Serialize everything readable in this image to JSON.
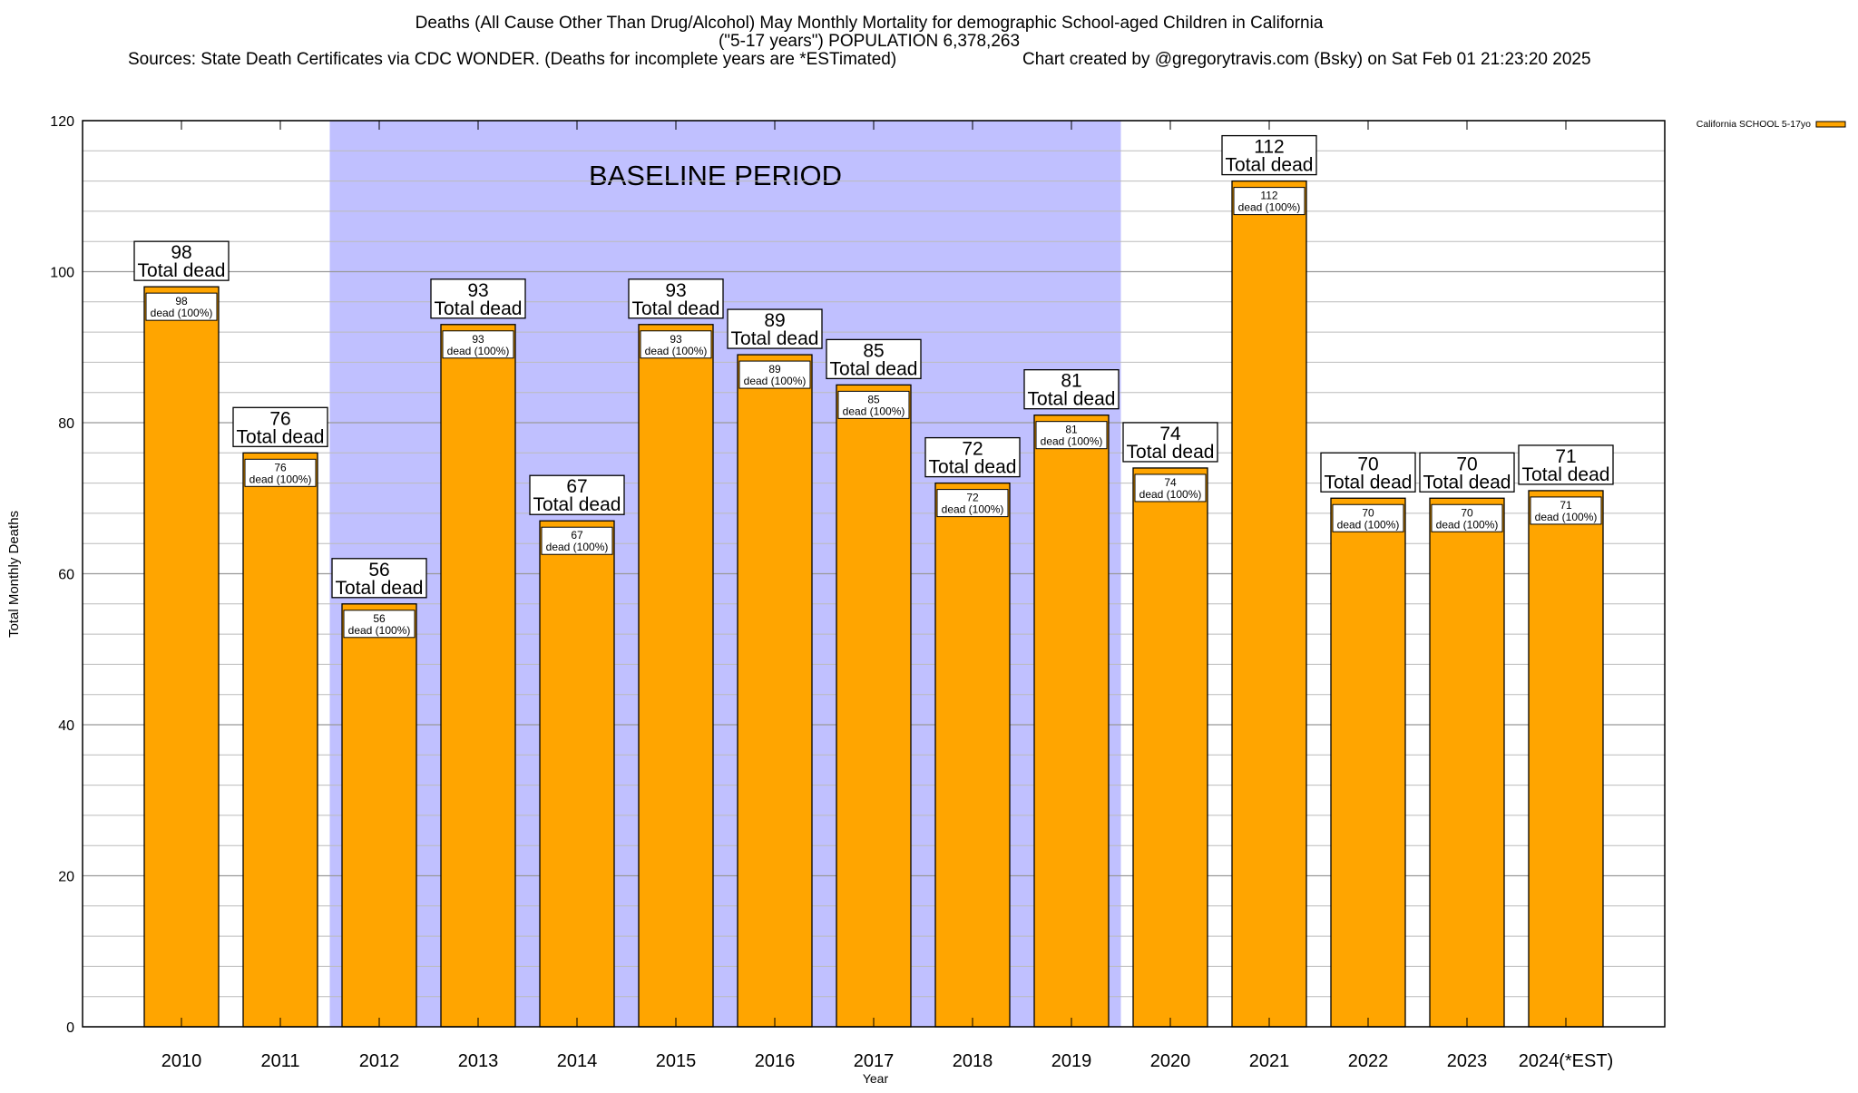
{
  "chart_data": {
    "type": "bar",
    "title_lines": [
      "Deaths (All Cause Other Than Drug/Alcohol) May Monthly Mortality for demographic School-aged Children in California",
      "(\"5-17 years\") POPULATION 6,378,263"
    ],
    "source_note": "Sources: State Death Certificates via CDC WONDER. (Deaths for incomplete years are *ESTimated)",
    "credit_note": "Chart created by @gregorytravis.com (Bsky) on Sat Feb 01 21:23:20 2025",
    "xlabel": "Year",
    "ylabel": "Total Monthly Deaths",
    "ylim": [
      0,
      120
    ],
    "yticks": [
      0,
      20,
      40,
      60,
      80,
      100,
      120
    ],
    "grid": true,
    "categories": [
      "2010",
      "2011",
      "2012",
      "2013",
      "2014",
      "2015",
      "2016",
      "2017",
      "2018",
      "2019",
      "2020",
      "2021",
      "2022",
      "2023",
      "2024(*EST)"
    ],
    "series": [
      {
        "name": "California SCHOOL 5-17yo",
        "color": "#ffa500",
        "values": [
          98,
          76,
          56,
          93,
          67,
          93,
          89,
          85,
          72,
          81,
          74,
          112,
          70,
          70,
          71
        ]
      }
    ],
    "total_label": "Total dead",
    "inner_label": "dead (100%)",
    "legend_position": "top-right",
    "annotation": {
      "text": "BASELINE PERIOD",
      "from_category": "2012",
      "to_category": "2019",
      "color": "#c0c0ff"
    }
  }
}
